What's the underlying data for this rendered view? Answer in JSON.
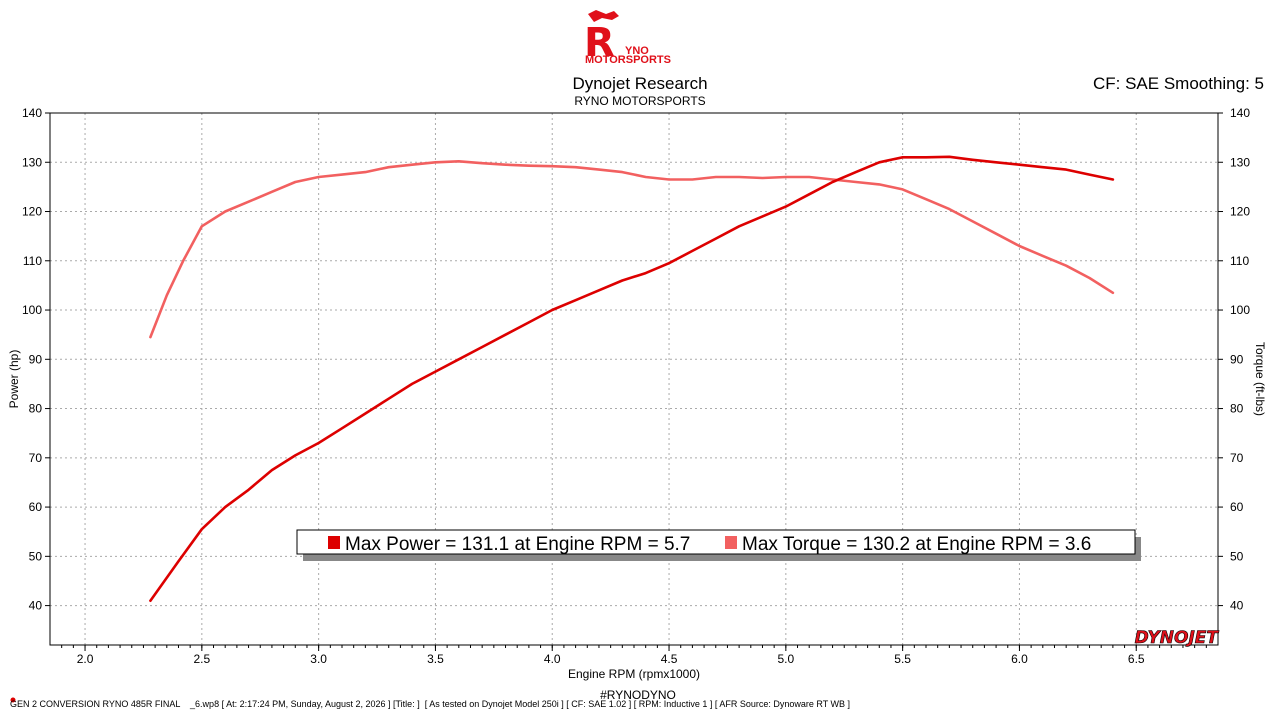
{
  "logo": {
    "line1": "YNO",
    "line2": "MOTORSPORTS",
    "letter": "R"
  },
  "header": {
    "title": "Dynojet Research",
    "subtitle": "RYNO MOTORSPORTS",
    "cf_smoothing": "CF: SAE Smoothing: 5"
  },
  "brand_mark": "DYNOJET",
  "hashtag": "#RYNODYNO",
  "footer": "GEN 2 CONVERSION RYNO 485R FINAL    _6.wp8 [ At: 2:17:24 PM, Sunday, August 2, 2026 ] [Title: ]  [ As tested on Dynojet Model 250i ] [ CF: SAE 1.02 ] [ RPM: Inductive 1 ] [ AFR Source: Dynoware RT WB ]",
  "legend": {
    "power_text": "Max Power = 131.1 at Engine RPM = 5.7",
    "torque_text": "Max Torque = 130.2 at Engine RPM = 3.6"
  },
  "colors": {
    "power": "#dd0000",
    "torque": "#f26060",
    "logo": "#e0101a"
  },
  "chart_data": {
    "type": "line",
    "xlabel": "Engine RPM (rpmx1000)",
    "ylabel_left": "Power (hp)",
    "ylabel_right": "Torque (ft-lbs)",
    "xlim": [
      1.85,
      6.85
    ],
    "ylim": [
      32,
      140
    ],
    "x_ticks": [
      "2.0",
      "2.5",
      "3.0",
      "3.5",
      "4.0",
      "4.5",
      "5.0",
      "5.5",
      "6.0",
      "6.5"
    ],
    "y_ticks": [
      "40",
      "50",
      "60",
      "70",
      "80",
      "90",
      "100",
      "110",
      "120",
      "130",
      "140"
    ],
    "grid": true,
    "series": [
      {
        "name": "Power",
        "axis": "left",
        "x": [
          2.28,
          2.4,
          2.5,
          2.6,
          2.7,
          2.8,
          2.9,
          3.0,
          3.1,
          3.2,
          3.3,
          3.4,
          3.5,
          3.6,
          3.7,
          3.8,
          3.9,
          4.0,
          4.1,
          4.2,
          4.3,
          4.4,
          4.5,
          4.6,
          4.7,
          4.8,
          4.9,
          5.0,
          5.1,
          5.2,
          5.3,
          5.4,
          5.5,
          5.6,
          5.7,
          5.8,
          5.9,
          6.0,
          6.1,
          6.2,
          6.3,
          6.4
        ],
        "values": [
          41,
          49,
          55.5,
          60,
          63.5,
          67.5,
          70.5,
          73,
          76,
          79,
          82,
          85,
          87.5,
          90,
          92.5,
          95,
          97.5,
          100,
          102,
          104,
          106,
          107.5,
          109.5,
          112,
          114.5,
          117,
          119,
          121,
          123.5,
          126,
          128,
          130,
          131,
          131,
          131.1,
          130.5,
          130,
          129.5,
          129,
          128.5,
          127.5,
          126.5
        ]
      },
      {
        "name": "Torque",
        "axis": "right",
        "x": [
          2.28,
          2.35,
          2.42,
          2.5,
          2.6,
          2.7,
          2.8,
          2.9,
          3.0,
          3.1,
          3.2,
          3.3,
          3.4,
          3.5,
          3.6,
          3.7,
          3.8,
          3.9,
          4.0,
          4.1,
          4.2,
          4.3,
          4.4,
          4.5,
          4.6,
          4.7,
          4.8,
          4.9,
          5.0,
          5.1,
          5.2,
          5.3,
          5.4,
          5.5,
          5.6,
          5.7,
          5.8,
          5.9,
          6.0,
          6.1,
          6.2,
          6.3,
          6.4
        ],
        "values": [
          94.5,
          103,
          110,
          117,
          120,
          122,
          124,
          126,
          127,
          127.5,
          128,
          129,
          129.5,
          130,
          130.2,
          129.8,
          129.5,
          129.3,
          129.2,
          129,
          128.5,
          128,
          127,
          126.5,
          126.5,
          127,
          127,
          126.8,
          127,
          127,
          126.5,
          126,
          125.5,
          124.5,
          122.5,
          120.5,
          118,
          115.5,
          113,
          111,
          109,
          106.5,
          103.5
        ]
      }
    ]
  }
}
